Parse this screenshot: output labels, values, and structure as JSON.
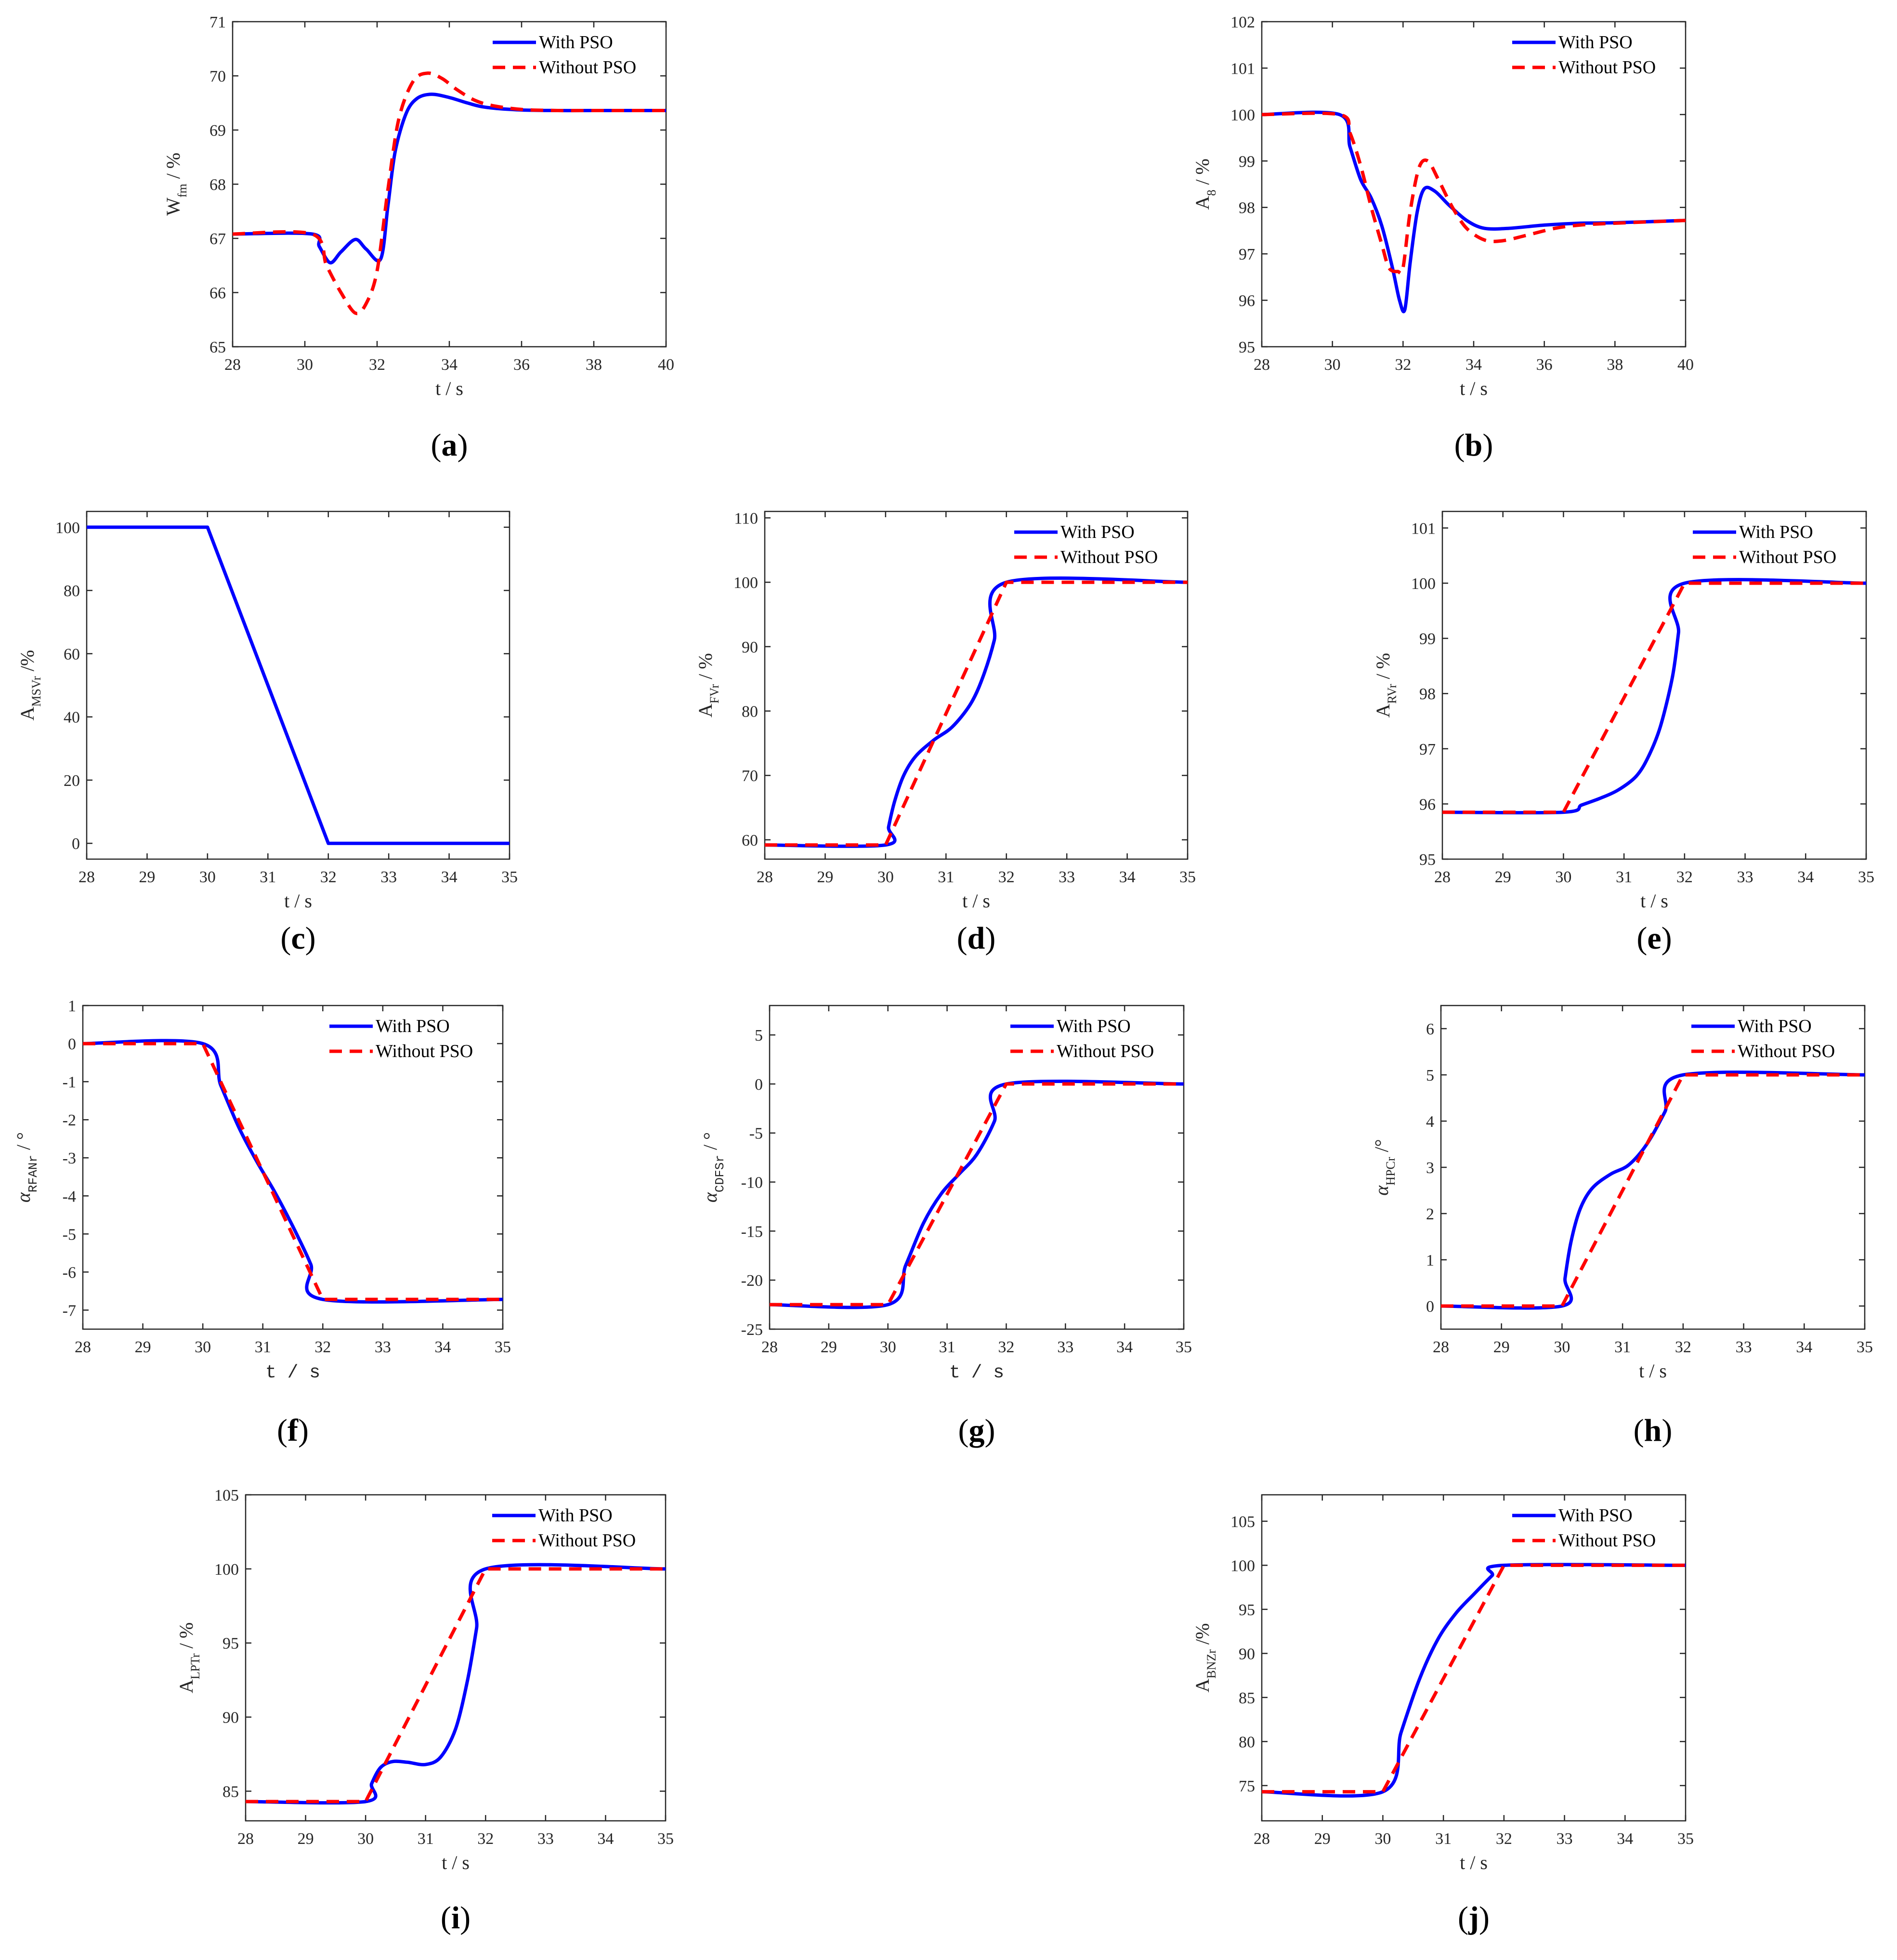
{
  "colors": {
    "with_pso": "#0000ff",
    "without_pso": "#ff0000",
    "axis": "#262626"
  },
  "legend": {
    "with_label": "With PSO",
    "without_label": "Without PSO"
  },
  "chart_data": [
    {
      "id": "a",
      "type": "line",
      "caption": "a",
      "xlabel": "t / s",
      "ylabel_main": "W",
      "ylabel_sub": "fm",
      "ylabel_tail": " / %",
      "xlim": [
        28,
        40
      ],
      "xticks": [
        28,
        30,
        32,
        34,
        36,
        38,
        40
      ],
      "ylim": [
        65,
        71
      ],
      "yticks": [
        65,
        66,
        67,
        68,
        69,
        70,
        71
      ],
      "legend_pos": "top-right",
      "series": [
        {
          "name": "With PSO",
          "style": "solid",
          "x": [
            28,
            30.2,
            30.4,
            30.7,
            31.0,
            31.4,
            31.7,
            32.1,
            32.3,
            32.5,
            32.8,
            33.1,
            33.5,
            34.0,
            34.5,
            35.0,
            36.0,
            37.0,
            38.0,
            40.0
          ],
          "y": [
            67.08,
            67.08,
            66.85,
            66.55,
            66.75,
            66.98,
            66.8,
            66.62,
            67.6,
            68.6,
            69.3,
            69.58,
            69.66,
            69.6,
            69.5,
            69.42,
            69.37,
            69.36,
            69.36,
            69.36
          ]
        },
        {
          "name": "Without PSO",
          "style": "dashed",
          "x": [
            28,
            30.2,
            30.6,
            31.0,
            31.4,
            31.7,
            32.0,
            32.3,
            32.6,
            33.0,
            33.4,
            33.8,
            34.2,
            34.7,
            35.2,
            36.0,
            37.0,
            38.0,
            40.0
          ],
          "y": [
            67.08,
            67.08,
            66.5,
            66.0,
            65.62,
            65.8,
            66.4,
            67.9,
            69.2,
            69.9,
            70.05,
            69.95,
            69.75,
            69.55,
            69.45,
            69.38,
            69.36,
            69.36,
            69.36
          ]
        }
      ]
    },
    {
      "id": "b",
      "type": "line",
      "caption": "b",
      "xlabel": "t / s",
      "ylabel_main": "A",
      "ylabel_sub": "8",
      "ylabel_tail": " / %",
      "xlim": [
        28,
        40
      ],
      "xticks": [
        28,
        30,
        32,
        34,
        36,
        38,
        40
      ],
      "ylim": [
        95,
        102
      ],
      "yticks": [
        95,
        96,
        97,
        98,
        99,
        100,
        101,
        102
      ],
      "legend_pos": "top-right",
      "series": [
        {
          "name": "With PSO",
          "style": "solid",
          "x": [
            28,
            30.2,
            30.5,
            30.8,
            31.1,
            31.4,
            31.7,
            31.9,
            32.05,
            32.2,
            32.4,
            32.6,
            32.9,
            33.3,
            33.8,
            34.3,
            35.0,
            36.0,
            37.0,
            38.0,
            40.0
          ],
          "y": [
            100,
            100,
            99.3,
            98.6,
            98.2,
            97.6,
            96.7,
            96.0,
            95.8,
            96.8,
            97.9,
            98.4,
            98.35,
            98.05,
            97.72,
            97.55,
            97.55,
            97.62,
            97.66,
            97.67,
            97.72
          ]
        },
        {
          "name": "Without PSO",
          "style": "dashed",
          "x": [
            28,
            30.2,
            30.5,
            30.8,
            31.1,
            31.4,
            31.6,
            31.85,
            32.0,
            32.2,
            32.45,
            32.7,
            33.0,
            33.4,
            33.8,
            34.3,
            34.8,
            35.5,
            36.3,
            37.0,
            38.0,
            40.0
          ],
          "y": [
            100,
            100,
            99.6,
            98.9,
            98.0,
            97.2,
            96.7,
            96.62,
            96.7,
            97.9,
            98.85,
            99.0,
            98.6,
            98.0,
            97.55,
            97.3,
            97.28,
            97.4,
            97.55,
            97.62,
            97.66,
            97.72
          ]
        }
      ]
    },
    {
      "id": "c",
      "type": "line",
      "caption": "c",
      "xlabel": "t / s",
      "ylabel_main": "A",
      "ylabel_sub": "MSVr",
      "ylabel_tail": " /%",
      "xlim": [
        28,
        35
      ],
      "xticks": [
        28,
        29,
        30,
        31,
        32,
        33,
        34,
        35
      ],
      "ylim": [
        -5,
        105
      ],
      "yticks": [
        0,
        20,
        40,
        60,
        80,
        100
      ],
      "legend_pos": "none",
      "series": [
        {
          "name": "With PSO",
          "style": "solid",
          "x": [
            28,
            30,
            32,
            35
          ],
          "y": [
            100,
            100,
            0,
            0
          ]
        }
      ]
    },
    {
      "id": "d",
      "type": "line",
      "caption": "d",
      "xlabel": "t / s",
      "ylabel_main": "A",
      "ylabel_sub": "FVr",
      "ylabel_tail": " / %",
      "xlim": [
        28,
        35
      ],
      "xticks": [
        28,
        29,
        30,
        31,
        32,
        33,
        34,
        35
      ],
      "ylim": [
        57,
        111
      ],
      "yticks": [
        60,
        70,
        80,
        90,
        100,
        110
      ],
      "legend_pos": "top-right",
      "series": [
        {
          "name": "With PSO",
          "style": "solid",
          "x": [
            28,
            30,
            30.05,
            30.15,
            30.3,
            30.5,
            30.8,
            31.1,
            31.4,
            31.6,
            31.8,
            32.0,
            35
          ],
          "y": [
            59.2,
            59.2,
            62,
            66,
            70,
            73,
            75.5,
            77.5,
            81,
            85,
            91,
            100,
            100
          ]
        },
        {
          "name": "Without PSO",
          "style": "dashed",
          "x": [
            28,
            30,
            32,
            35
          ],
          "y": [
            59.2,
            59.2,
            100,
            100
          ]
        }
      ]
    },
    {
      "id": "e",
      "type": "line",
      "caption": "e",
      "xlabel": "t / s",
      "ylabel_main": "A",
      "ylabel_sub": "RVr",
      "ylabel_tail": " / %",
      "xlim": [
        28,
        35
      ],
      "xticks": [
        28,
        29,
        30,
        31,
        32,
        33,
        34,
        35
      ],
      "ylim": [
        95,
        101.3
      ],
      "yticks": [
        95,
        96,
        97,
        98,
        99,
        100,
        101
      ],
      "legend_pos": "top-right",
      "series": [
        {
          "name": "With PSO",
          "style": "solid",
          "x": [
            28,
            30,
            30.3,
            30.6,
            30.9,
            31.2,
            31.4,
            31.6,
            31.8,
            31.9,
            32.0,
            35
          ],
          "y": [
            95.85,
            95.85,
            95.98,
            96.1,
            96.25,
            96.5,
            96.85,
            97.4,
            98.3,
            99.1,
            100,
            100
          ]
        },
        {
          "name": "Without PSO",
          "style": "dashed",
          "x": [
            28,
            30,
            32,
            35
          ],
          "y": [
            95.85,
            95.85,
            100,
            100
          ]
        }
      ]
    },
    {
      "id": "f",
      "type": "line",
      "caption": "f",
      "xlabel": "t / s",
      "ylabel_main": "α",
      "ylabel_sub": "RFANr",
      "ylabel_tail": " / °",
      "xlim": [
        28,
        35
      ],
      "xticks": [
        28,
        29,
        30,
        31,
        32,
        33,
        34,
        35
      ],
      "ylim": [
        -7.5,
        1
      ],
      "yticks": [
        -7,
        -6,
        -5,
        -4,
        -3,
        -2,
        -1,
        0,
        1
      ],
      "legend_pos": "top-right",
      "series": [
        {
          "name": "With PSO",
          "style": "solid",
          "x": [
            28,
            30,
            30.3,
            30.6,
            30.9,
            31.2,
            31.5,
            31.8,
            32.0,
            35
          ],
          "y": [
            0,
            0,
            -1.1,
            -2.2,
            -3.1,
            -3.9,
            -4.8,
            -5.8,
            -6.72,
            -6.72
          ]
        },
        {
          "name": "Without PSO",
          "style": "dashed",
          "x": [
            28,
            30,
            32,
            35
          ],
          "y": [
            0,
            0,
            -6.72,
            -6.72
          ]
        }
      ]
    },
    {
      "id": "g",
      "type": "line",
      "caption": "g",
      "xlabel": "t / s",
      "ylabel_main": "α",
      "ylabel_sub": "CDFSr",
      "ylabel_tail": " / °",
      "xlim": [
        28,
        35
      ],
      "xticks": [
        28,
        29,
        30,
        31,
        32,
        33,
        34,
        35
      ],
      "ylim": [
        -25,
        8
      ],
      "yticks": [
        -25,
        -20,
        -15,
        -10,
        -5,
        0,
        5
      ],
      "legend_pos": "top-right",
      "series": [
        {
          "name": "With PSO",
          "style": "solid",
          "x": [
            28,
            30,
            30.3,
            30.6,
            30.9,
            31.2,
            31.5,
            31.8,
            32.0,
            35
          ],
          "y": [
            -22.5,
            -22.5,
            -18.5,
            -14.2,
            -11.2,
            -9.2,
            -7.2,
            -3.8,
            0,
            0
          ]
        },
        {
          "name": "Without PSO",
          "style": "dashed",
          "x": [
            28,
            30,
            32,
            35
          ],
          "y": [
            -22.5,
            -22.5,
            0,
            0
          ]
        }
      ]
    },
    {
      "id": "h",
      "type": "line",
      "caption": "h",
      "xlabel": "t / s",
      "ylabel_main": "α",
      "ylabel_sub": "HPCr",
      "ylabel_tail": " /°",
      "xlim": [
        28,
        35
      ],
      "xticks": [
        28,
        29,
        30,
        31,
        32,
        33,
        34,
        35
      ],
      "ylim": [
        -0.5,
        6.5
      ],
      "yticks": [
        0,
        1,
        2,
        3,
        4,
        5,
        6
      ],
      "legend_pos": "top-right",
      "series": [
        {
          "name": "With PSO",
          "style": "solid",
          "x": [
            28,
            30,
            30.05,
            30.15,
            30.3,
            30.5,
            30.8,
            31.1,
            31.4,
            31.7,
            32.0,
            35
          ],
          "y": [
            0,
            0,
            0.6,
            1.4,
            2.1,
            2.55,
            2.85,
            3.05,
            3.5,
            4.2,
            5,
            5
          ]
        },
        {
          "name": "Without PSO",
          "style": "dashed",
          "x": [
            28,
            30,
            32,
            35
          ],
          "y": [
            0,
            0,
            5,
            5
          ]
        }
      ]
    },
    {
      "id": "i",
      "type": "line",
      "caption": "i",
      "xlabel": "t / s",
      "ylabel_main": "A",
      "ylabel_sub": "LPTr",
      "ylabel_tail": " / %",
      "xlim": [
        28,
        35
      ],
      "xticks": [
        28,
        29,
        30,
        31,
        32,
        33,
        34,
        35
      ],
      "ylim": [
        83,
        105
      ],
      "yticks": [
        85,
        90,
        95,
        100,
        105
      ],
      "legend_pos": "top-right",
      "series": [
        {
          "name": "With PSO",
          "style": "solid",
          "x": [
            28,
            30,
            30.1,
            30.25,
            30.45,
            30.7,
            31.0,
            31.25,
            31.5,
            31.7,
            31.85,
            32.0,
            35
          ],
          "y": [
            84.3,
            84.3,
            85.5,
            86.6,
            87.0,
            86.95,
            86.8,
            87.3,
            89.2,
            92.5,
            96.0,
            100,
            100
          ]
        },
        {
          "name": "Without PSO",
          "style": "dashed",
          "x": [
            28,
            30,
            32,
            35
          ],
          "y": [
            84.3,
            84.3,
            100,
            100
          ]
        }
      ]
    },
    {
      "id": "j",
      "type": "line",
      "caption": "j",
      "xlabel": "t / s",
      "ylabel_main": "A",
      "ylabel_sub": "BNZr",
      "ylabel_tail": " /%",
      "xlim": [
        28,
        35
      ],
      "xticks": [
        28,
        29,
        30,
        31,
        32,
        33,
        34,
        35
      ],
      "ylim": [
        71,
        108
      ],
      "yticks": [
        75,
        80,
        85,
        90,
        95,
        100,
        105
      ],
      "legend_pos": "top-right",
      "series": [
        {
          "name": "With PSO",
          "style": "solid",
          "x": [
            28,
            30,
            30.3,
            30.6,
            30.9,
            31.2,
            31.5,
            31.8,
            32.0,
            35
          ],
          "y": [
            74.3,
            74.3,
            81,
            87,
            91.5,
            94.5,
            96.7,
            98.8,
            100,
            100
          ]
        },
        {
          "name": "Without PSO",
          "style": "dashed",
          "x": [
            28,
            30,
            32,
            35
          ],
          "y": [
            74.3,
            74.3,
            100,
            100
          ]
        }
      ]
    }
  ]
}
